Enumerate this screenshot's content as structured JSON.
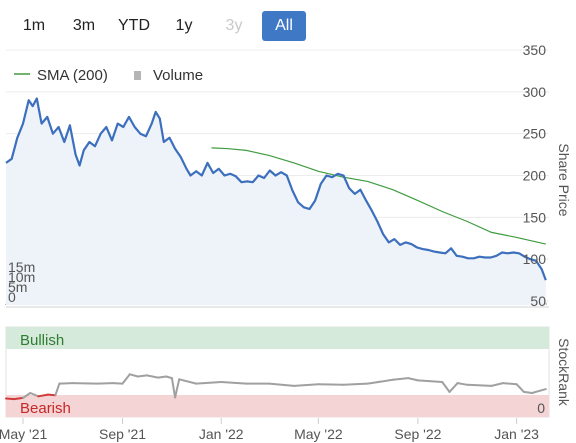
{
  "range_buttons": [
    {
      "label": "1m",
      "state": "normal"
    },
    {
      "label": "3m",
      "state": "normal"
    },
    {
      "label": "YTD",
      "state": "normal"
    },
    {
      "label": "1y",
      "state": "normal"
    },
    {
      "label": "3y",
      "state": "disabled"
    },
    {
      "label": "All",
      "state": "active"
    }
  ],
  "legend": {
    "sma_label": "SMA (200)",
    "volume_label": "Volume"
  },
  "zones": {
    "bullish": "Bullish",
    "bearish": "Bearish"
  },
  "colors": {
    "price_line": "#3c6fbd",
    "price_fill": "#eef2f9",
    "sma_line": "#3f9c3f",
    "volume_bar": "#b5b5b5",
    "rank_line": "#a0a0a0",
    "rank_red": "#d13b3b",
    "bullish_bg": "#d6eadb",
    "bullish_text": "#2e7d32",
    "bearish_bg": "#f4d4d4",
    "bearish_text": "#c62828",
    "active_button": "#3f79c6"
  },
  "chart_data": [
    {
      "type": "line",
      "panel": "price",
      "ylabel": "Share Price",
      "ylim": [
        50,
        350
      ],
      "yticks": [
        50,
        100,
        150,
        200,
        250,
        300,
        350
      ],
      "xlim": [
        "2021-04-10",
        "2023-02-10"
      ],
      "xticks": [
        {
          "label": "May '21",
          "date": "2021-05-01"
        },
        {
          "label": "Sep '21",
          "date": "2021-09-01"
        },
        {
          "label": "Jan '22",
          "date": "2022-01-01"
        },
        {
          "label": "May '22",
          "date": "2022-05-01"
        },
        {
          "label": "Sep '22",
          "date": "2022-09-01"
        },
        {
          "label": "Jan '23",
          "date": "2023-01-01"
        }
      ],
      "series": [
        {
          "name": "Price",
          "points": [
            [
              "2021-04-10",
              215
            ],
            [
              "2021-04-17",
              220
            ],
            [
              "2021-04-24",
              245
            ],
            [
              "2021-05-01",
              262
            ],
            [
              "2021-05-08",
              290
            ],
            [
              "2021-05-13",
              283
            ],
            [
              "2021-05-18",
              292
            ],
            [
              "2021-05-24",
              262
            ],
            [
              "2021-05-31",
              270
            ],
            [
              "2021-06-07",
              250
            ],
            [
              "2021-06-14",
              258
            ],
            [
              "2021-06-21",
              240
            ],
            [
              "2021-06-28",
              260
            ],
            [
              "2021-07-05",
              225
            ],
            [
              "2021-07-10",
              212
            ],
            [
              "2021-07-15",
              230
            ],
            [
              "2021-07-22",
              240
            ],
            [
              "2021-07-29",
              235
            ],
            [
              "2021-08-05",
              250
            ],
            [
              "2021-08-12",
              258
            ],
            [
              "2021-08-19",
              242
            ],
            [
              "2021-08-26",
              262
            ],
            [
              "2021-09-02",
              258
            ],
            [
              "2021-09-09",
              270
            ],
            [
              "2021-09-16",
              258
            ],
            [
              "2021-09-23",
              250
            ],
            [
              "2021-09-30",
              247
            ],
            [
              "2021-10-07",
              262
            ],
            [
              "2021-10-12",
              276
            ],
            [
              "2021-10-17",
              268
            ],
            [
              "2021-10-22",
              240
            ],
            [
              "2021-10-29",
              245
            ],
            [
              "2021-11-05",
              232
            ],
            [
              "2021-11-12",
              222
            ],
            [
              "2021-11-19",
              208
            ],
            [
              "2021-11-24",
              200
            ],
            [
              "2021-12-01",
              205
            ],
            [
              "2021-12-08",
              200
            ],
            [
              "2021-12-15",
              215
            ],
            [
              "2021-12-22",
              203
            ],
            [
              "2021-12-29",
              208
            ],
            [
              "2022-01-05",
              200
            ],
            [
              "2022-01-12",
              202
            ],
            [
              "2022-01-19",
              199
            ],
            [
              "2022-01-26",
              192
            ],
            [
              "2022-02-02",
              193
            ],
            [
              "2022-02-09",
              192
            ],
            [
              "2022-02-16",
              200
            ],
            [
              "2022-02-23",
              197
            ],
            [
              "2022-03-02",
              206
            ],
            [
              "2022-03-09",
              200
            ],
            [
              "2022-03-16",
              204
            ],
            [
              "2022-03-23",
              200
            ],
            [
              "2022-03-30",
              182
            ],
            [
              "2022-04-06",
              168
            ],
            [
              "2022-04-13",
              162
            ],
            [
              "2022-04-20",
              160
            ],
            [
              "2022-04-27",
              170
            ],
            [
              "2022-05-04",
              190
            ],
            [
              "2022-05-11",
              200
            ],
            [
              "2022-05-18",
              198
            ],
            [
              "2022-05-25",
              202
            ],
            [
              "2022-06-01",
              200
            ],
            [
              "2022-06-08",
              185
            ],
            [
              "2022-06-15",
              178
            ],
            [
              "2022-06-22",
              183
            ],
            [
              "2022-06-29",
              170
            ],
            [
              "2022-07-06",
              158
            ],
            [
              "2022-07-13",
              145
            ],
            [
              "2022-07-20",
              130
            ],
            [
              "2022-07-27",
              120
            ],
            [
              "2022-08-03",
              124
            ],
            [
              "2022-08-10",
              117
            ],
            [
              "2022-08-17",
              120
            ],
            [
              "2022-08-24",
              118
            ],
            [
              "2022-08-31",
              114
            ],
            [
              "2022-09-07",
              112
            ],
            [
              "2022-09-14",
              111
            ],
            [
              "2022-09-21",
              109
            ],
            [
              "2022-09-28",
              108
            ],
            [
              "2022-10-05",
              107
            ],
            [
              "2022-10-12",
              113
            ],
            [
              "2022-10-19",
              104
            ],
            [
              "2022-10-26",
              103
            ],
            [
              "2022-11-02",
              101
            ],
            [
              "2022-11-09",
              101
            ],
            [
              "2022-11-16",
              103
            ],
            [
              "2022-11-23",
              102
            ],
            [
              "2022-11-30",
              102
            ],
            [
              "2022-12-07",
              104
            ],
            [
              "2022-12-14",
              108
            ],
            [
              "2022-12-21",
              107
            ],
            [
              "2022-12-28",
              108
            ],
            [
              "2023-01-04",
              107
            ],
            [
              "2023-01-11",
              103
            ],
            [
              "2023-01-18",
              100
            ],
            [
              "2023-01-25",
              98
            ],
            [
              "2023-02-01",
              88
            ],
            [
              "2023-02-06",
              75
            ]
          ]
        },
        {
          "name": "SMA (200)",
          "points": [
            [
              "2021-12-20",
              233
            ],
            [
              "2022-01-10",
              232
            ],
            [
              "2022-02-01",
              230
            ],
            [
              "2022-03-01",
              224
            ],
            [
              "2022-04-01",
              215
            ],
            [
              "2022-05-01",
              205
            ],
            [
              "2022-06-01",
              198
            ],
            [
              "2022-07-01",
              193
            ],
            [
              "2022-08-01",
              183
            ],
            [
              "2022-09-01",
              170
            ],
            [
              "2022-10-01",
              157
            ],
            [
              "2022-11-01",
              145
            ],
            [
              "2022-12-01",
              132
            ],
            [
              "2023-01-01",
              126
            ],
            [
              "2023-02-06",
              118
            ]
          ]
        }
      ]
    },
    {
      "type": "bar",
      "panel": "volume",
      "name": "Volume",
      "ylim": [
        0,
        25
      ],
      "yticks": [
        {
          "label": "0",
          "value": 0
        },
        {
          "label": "5m",
          "value": 5
        },
        {
          "label": "10m",
          "value": 10
        },
        {
          "label": "15m",
          "value": 15
        }
      ],
      "points": [
        [
          "2021-04-10",
          0.6
        ],
        [
          "2021-04-24",
          0.8
        ],
        [
          "2021-05-08",
          2.2
        ],
        [
          "2021-05-22",
          1.0
        ],
        [
          "2021-06-05",
          0.7
        ],
        [
          "2021-06-19",
          0.9
        ],
        [
          "2021-07-03",
          1.4
        ],
        [
          "2021-07-17",
          0.8
        ],
        [
          "2021-07-31",
          0.6
        ],
        [
          "2021-08-14",
          1.1
        ],
        [
          "2021-08-28",
          1.3
        ],
        [
          "2021-09-11",
          0.8
        ],
        [
          "2021-09-25",
          0.7
        ],
        [
          "2021-10-09",
          0.9
        ],
        [
          "2021-10-23",
          3.0
        ],
        [
          "2021-11-06",
          1.2
        ],
        [
          "2021-11-20",
          0.9
        ],
        [
          "2021-12-04",
          0.7
        ],
        [
          "2021-12-18",
          1.0
        ],
        [
          "2022-01-01",
          0.6
        ],
        [
          "2022-01-15",
          0.8
        ],
        [
          "2022-01-29",
          0.9
        ],
        [
          "2022-02-12",
          0.7
        ],
        [
          "2022-02-26",
          0.6
        ],
        [
          "2022-03-12",
          0.8
        ],
        [
          "2022-03-26",
          0.9
        ],
        [
          "2022-04-09",
          1.8
        ],
        [
          "2022-04-23",
          1.0
        ],
        [
          "2022-05-07",
          0.8
        ],
        [
          "2022-05-21",
          0.7
        ],
        [
          "2022-06-04",
          0.9
        ],
        [
          "2022-06-18",
          0.6
        ],
        [
          "2022-07-02",
          0.8
        ],
        [
          "2022-07-16",
          1.2
        ],
        [
          "2022-07-30",
          1.0
        ],
        [
          "2022-08-13",
          0.9
        ],
        [
          "2022-08-27",
          0.6
        ],
        [
          "2022-09-10",
          0.7
        ],
        [
          "2022-09-24",
          0.8
        ],
        [
          "2022-10-01",
          17.5
        ],
        [
          "2022-10-05",
          2.2
        ],
        [
          "2022-10-19",
          0.7
        ],
        [
          "2022-11-02",
          0.8
        ],
        [
          "2022-11-16",
          0.6
        ],
        [
          "2022-11-30",
          0.7
        ],
        [
          "2022-12-14",
          0.9
        ],
        [
          "2022-12-28",
          0.6
        ],
        [
          "2023-01-11",
          0.8
        ],
        [
          "2023-01-25",
          0.9
        ],
        [
          "2023-02-06",
          1.1
        ]
      ]
    },
    {
      "type": "line",
      "panel": "stockrank",
      "ylabel": "StockRank",
      "yticks": [
        {
          "label": "0",
          "value": 0
        }
      ],
      "ylim": [
        0,
        100
      ],
      "series": [
        {
          "name": "StockRank",
          "points": [
            [
              "2021-04-10",
              10
            ],
            [
              "2021-04-20",
              9
            ],
            [
              "2021-05-01",
              11
            ],
            [
              "2021-05-10",
              20
            ],
            [
              "2021-05-20",
              14
            ],
            [
              "2021-06-01",
              17
            ],
            [
              "2021-06-10",
              16
            ],
            [
              "2021-06-15",
              37
            ],
            [
              "2021-07-01",
              38
            ],
            [
              "2021-08-01",
              37
            ],
            [
              "2021-08-20",
              38
            ],
            [
              "2021-09-01",
              37
            ],
            [
              "2021-09-10",
              54
            ],
            [
              "2021-09-20",
              50
            ],
            [
              "2021-10-01",
              52
            ],
            [
              "2021-10-15",
              48
            ],
            [
              "2021-10-25",
              50
            ],
            [
              "2021-11-01",
              47
            ],
            [
              "2021-11-05",
              12
            ],
            [
              "2021-11-10",
              45
            ],
            [
              "2021-12-01",
              37
            ],
            [
              "2022-01-01",
              40
            ],
            [
              "2022-02-01",
              37
            ],
            [
              "2022-03-01",
              37
            ],
            [
              "2022-04-01",
              33
            ],
            [
              "2022-05-01",
              36
            ],
            [
              "2022-06-01",
              35
            ],
            [
              "2022-07-01",
              37
            ],
            [
              "2022-08-01",
              44
            ],
            [
              "2022-08-20",
              47
            ],
            [
              "2022-09-01",
              43
            ],
            [
              "2022-10-01",
              40
            ],
            [
              "2022-10-10",
              22
            ],
            [
              "2022-10-20",
              38
            ],
            [
              "2022-11-01",
              35
            ],
            [
              "2022-12-01",
              33
            ],
            [
              "2022-12-15",
              38
            ],
            [
              "2023-01-01",
              36
            ],
            [
              "2023-01-10",
              22
            ],
            [
              "2023-01-20",
              20
            ],
            [
              "2023-02-06",
              27
            ]
          ]
        }
      ]
    }
  ]
}
